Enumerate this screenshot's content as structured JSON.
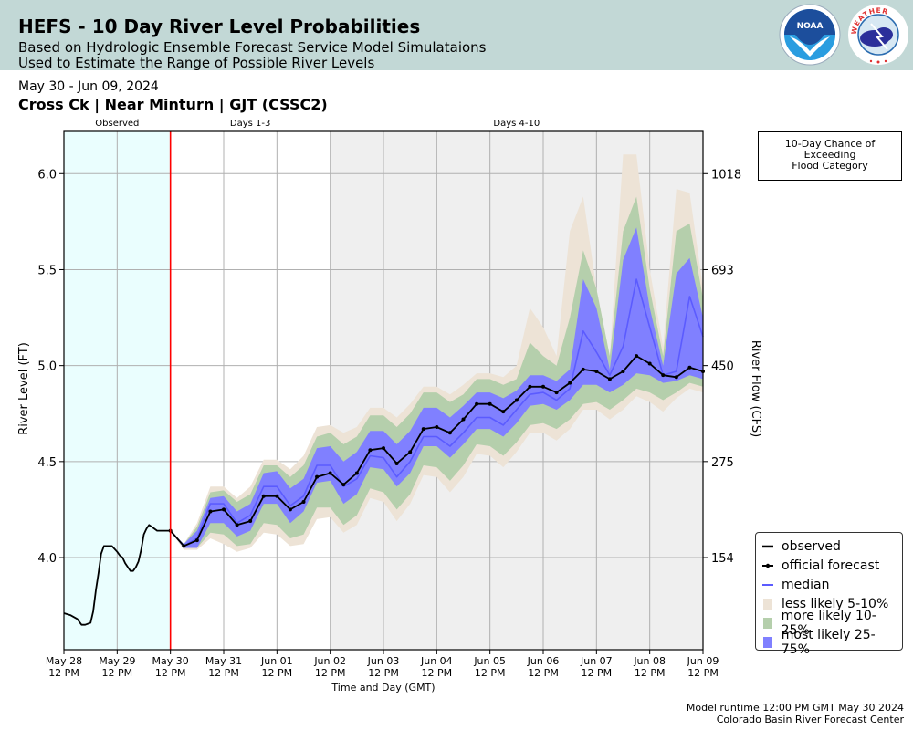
{
  "header": {
    "title": "HEFS - 10 Day River Level Probabilities",
    "subtitle_line1": "Based on Hydrologic Ensemble Forecast Service Model Simulataions",
    "subtitle_line2": "Used to Estimate the Range of Possible River Levels",
    "logos": [
      "noaa-logo",
      "national-weather-service-logo"
    ],
    "noaa_text": "NOAA",
    "nws_text": "NATIONAL WEATHER SERVICE"
  },
  "date_range": "May 30 - Jun 09, 2024",
  "station": "Cross Ck | Near Minturn | GJT (CSSC2)",
  "flood_box": {
    "line1": "10-Day Chance of",
    "line2": "Exceeding",
    "line3": "Flood Category"
  },
  "footer": {
    "runtime": "Model runtime 12:00 PM GMT May 30 2024",
    "center": "Colorado Basin River Forecast Center"
  },
  "colors": {
    "header_bg": "#c2d8d6",
    "observed_bg": "#eafefe",
    "days410_bg": "#efefef",
    "forecast_start_line": "#ff0000",
    "less_likely": "#ede3d6",
    "more_likely": "#b5cfac",
    "most_likely": "#8080ff",
    "median": "#5b5bff",
    "observed": "#000000",
    "official_forecast": "#000000"
  },
  "chart_data": {
    "type": "area",
    "title": "HEFS - 10 Day River Level Probabilities",
    "xlabel": "Time and Day (GMT)",
    "ylabel": "River Level (FT)",
    "y2label": "River Flow (CFS)",
    "ylim": [
      3.52,
      6.22
    ],
    "y_ticks": [
      4.0,
      4.5,
      5.0,
      5.5,
      6.0
    ],
    "y_tick_labels": [
      "4.0",
      "4.5",
      "5.0",
      "5.5",
      "6.0"
    ],
    "y2_ticks": [
      4.0,
      4.5,
      5.0,
      5.5,
      6.0
    ],
    "y2_tick_labels": [
      "154",
      "275",
      "450",
      "693",
      "1018"
    ],
    "x_unit": "days since May 28 12 PM GMT",
    "xlim": [
      0,
      12
    ],
    "x_ticks": [
      0,
      1,
      2,
      3,
      4,
      5,
      6,
      7,
      8,
      9,
      10,
      11,
      12
    ],
    "x_tick_labels": [
      [
        "May 28",
        "12 PM"
      ],
      [
        "May 29",
        "12 PM"
      ],
      [
        "May 30",
        "12 PM"
      ],
      [
        "May 31",
        "12 PM"
      ],
      [
        "Jun 01",
        "12 PM"
      ],
      [
        "Jun 02",
        "12 PM"
      ],
      [
        "Jun 03",
        "12 PM"
      ],
      [
        "Jun 04",
        "12 PM"
      ],
      [
        "Jun 05",
        "12 PM"
      ],
      [
        "Jun 06",
        "12 PM"
      ],
      [
        "Jun 07",
        "12 PM"
      ],
      [
        "Jun 08",
        "12 PM"
      ],
      [
        "Jun 09",
        "12 PM"
      ]
    ],
    "grid": true,
    "regions": [
      {
        "label": "Observed",
        "x_start": 0,
        "x_end": 2
      },
      {
        "label": "Days 1-3",
        "x_start": 2,
        "x_end": 5
      },
      {
        "label": "Days 4-10",
        "x_start": 5,
        "x_end": 12
      }
    ],
    "forecast_start_x": 2,
    "legend_position": "bottom-right",
    "legend": [
      {
        "label": "observed",
        "kind": "line",
        "color": "#000000"
      },
      {
        "label": "official forecast",
        "kind": "marker-line",
        "color": "#000000"
      },
      {
        "label": "median",
        "kind": "line",
        "color": "#5b5bff"
      },
      {
        "label": "less likely 5-10%",
        "kind": "patch",
        "color": "#ede3d6"
      },
      {
        "label": "more likely 10-25%",
        "kind": "patch",
        "color": "#b5cfac"
      },
      {
        "label": "most likely 25-75%",
        "kind": "patch",
        "color": "#8080ff"
      }
    ],
    "observed": {
      "x": [
        0,
        0.12,
        0.25,
        0.33,
        0.4,
        0.5,
        0.55,
        0.6,
        0.65,
        0.7,
        0.75,
        0.8,
        0.85,
        0.9,
        1.0,
        1.05,
        1.1,
        1.15,
        1.2,
        1.25,
        1.3,
        1.35,
        1.4,
        1.45,
        1.5,
        1.55,
        1.6,
        1.65,
        1.7,
        1.75,
        1.8,
        1.85,
        1.9,
        1.95,
        2.0
      ],
      "y": [
        3.71,
        3.7,
        3.68,
        3.65,
        3.65,
        3.66,
        3.72,
        3.83,
        3.92,
        4.02,
        4.06,
        4.06,
        4.06,
        4.06,
        4.03,
        4.01,
        4.0,
        3.97,
        3.95,
        3.93,
        3.93,
        3.95,
        3.98,
        4.04,
        4.12,
        4.15,
        4.17,
        4.16,
        4.15,
        4.14,
        4.14,
        4.14,
        4.14,
        4.14,
        4.14
      ]
    },
    "official_forecast": {
      "x": [
        2.0,
        2.25,
        2.5,
        2.75,
        3.0,
        3.25,
        3.5,
        3.75,
        4.0,
        4.25,
        4.5,
        4.75,
        5.0,
        5.25,
        5.5,
        5.75,
        6.0,
        6.25,
        6.5,
        6.75,
        7.0,
        7.25,
        7.5,
        7.75,
        8.0,
        8.25,
        8.5,
        8.75,
        9.0,
        9.25,
        9.5,
        9.75,
        10.0,
        10.25,
        10.5,
        10.75,
        11.0,
        11.25,
        11.5,
        11.75,
        12.0
      ],
      "y": [
        4.14,
        4.06,
        4.09,
        4.24,
        4.25,
        4.17,
        4.19,
        4.32,
        4.32,
        4.25,
        4.29,
        4.42,
        4.44,
        4.38,
        4.44,
        4.56,
        4.57,
        4.49,
        4.55,
        4.67,
        4.68,
        4.65,
        4.72,
        4.8,
        4.8,
        4.76,
        4.82,
        4.89,
        4.89,
        4.86,
        4.91,
        4.98,
        4.97,
        4.93,
        4.97,
        5.05,
        5.01,
        4.95,
        4.94,
        4.99,
        4.97
      ]
    },
    "median": {
      "x": [
        2.0,
        2.25,
        2.5,
        2.75,
        3.0,
        3.25,
        3.5,
        3.75,
        4.0,
        4.25,
        4.5,
        4.75,
        5.0,
        5.25,
        5.5,
        5.75,
        6.0,
        6.25,
        6.5,
        6.75,
        7.0,
        7.25,
        7.5,
        7.75,
        8.0,
        8.25,
        8.5,
        8.75,
        9.0,
        9.25,
        9.5,
        9.75,
        10.0,
        10.25,
        10.5,
        10.75,
        11.0,
        11.25,
        11.5,
        11.75,
        12.0
      ],
      "y": [
        4.14,
        4.06,
        4.1,
        4.28,
        4.28,
        4.18,
        4.22,
        4.37,
        4.37,
        4.27,
        4.32,
        4.48,
        4.48,
        4.37,
        4.41,
        4.53,
        4.52,
        4.42,
        4.5,
        4.63,
        4.63,
        4.58,
        4.65,
        4.73,
        4.73,
        4.69,
        4.77,
        4.85,
        4.86,
        4.82,
        4.88,
        5.18,
        5.07,
        4.95,
        5.1,
        5.45,
        5.2,
        4.95,
        4.97,
        5.36,
        5.15
      ]
    },
    "band_most_likely_25_75": {
      "x": [
        2.0,
        2.25,
        2.5,
        2.75,
        3.0,
        3.25,
        3.5,
        3.75,
        4.0,
        4.25,
        4.5,
        4.75,
        5.0,
        5.25,
        5.5,
        5.75,
        6.0,
        6.25,
        6.5,
        6.75,
        7.0,
        7.25,
        7.5,
        7.75,
        8.0,
        8.25,
        8.5,
        8.75,
        9.0,
        9.25,
        9.5,
        9.75,
        10.0,
        10.25,
        10.5,
        10.75,
        11.0,
        11.25,
        11.5,
        11.75,
        12.0
      ],
      "lower": [
        4.14,
        4.05,
        4.05,
        4.18,
        4.18,
        4.11,
        4.14,
        4.28,
        4.28,
        4.18,
        4.24,
        4.39,
        4.4,
        4.28,
        4.33,
        4.47,
        4.46,
        4.37,
        4.44,
        4.58,
        4.58,
        4.52,
        4.59,
        4.67,
        4.67,
        4.63,
        4.7,
        4.79,
        4.8,
        4.77,
        4.82,
        4.9,
        4.9,
        4.86,
        4.9,
        4.96,
        4.95,
        4.91,
        4.92,
        4.95,
        4.93
      ],
      "upper": [
        4.14,
        4.07,
        4.14,
        4.31,
        4.32,
        4.24,
        4.28,
        4.44,
        4.45,
        4.36,
        4.41,
        4.57,
        4.58,
        4.5,
        4.55,
        4.66,
        4.66,
        4.59,
        4.66,
        4.78,
        4.78,
        4.73,
        4.79,
        4.86,
        4.86,
        4.83,
        4.87,
        4.95,
        4.95,
        4.92,
        4.98,
        5.45,
        5.3,
        4.98,
        5.55,
        5.72,
        5.3,
        5.0,
        5.48,
        5.56,
        5.25
      ]
    },
    "band_more_likely_10_25": {
      "x": [
        2.0,
        2.25,
        2.5,
        2.75,
        3.0,
        3.25,
        3.5,
        3.75,
        4.0,
        4.25,
        4.5,
        4.75,
        5.0,
        5.25,
        5.5,
        5.75,
        6.0,
        6.25,
        6.5,
        6.75,
        7.0,
        7.25,
        7.5,
        7.75,
        8.0,
        8.25,
        8.5,
        8.75,
        9.0,
        9.25,
        9.5,
        9.75,
        10.0,
        10.25,
        10.5,
        10.75,
        11.0,
        11.25,
        11.5,
        11.75,
        12.0
      ],
      "lower": [
        4.14,
        4.05,
        4.05,
        4.13,
        4.12,
        4.06,
        4.07,
        4.18,
        4.17,
        4.1,
        4.12,
        4.26,
        4.26,
        4.17,
        4.22,
        4.36,
        4.34,
        4.25,
        4.33,
        4.48,
        4.47,
        4.4,
        4.48,
        4.59,
        4.58,
        4.53,
        4.6,
        4.69,
        4.7,
        4.67,
        4.72,
        4.8,
        4.81,
        4.77,
        4.82,
        4.88,
        4.86,
        4.82,
        4.86,
        4.91,
        4.89
      ],
      "upper": [
        4.14,
        4.07,
        4.16,
        4.34,
        4.35,
        4.29,
        4.33,
        4.48,
        4.48,
        4.42,
        4.48,
        4.63,
        4.65,
        4.59,
        4.63,
        4.74,
        4.74,
        4.68,
        4.75,
        4.86,
        4.86,
        4.81,
        4.85,
        4.93,
        4.93,
        4.9,
        4.93,
        5.12,
        5.05,
        5.0,
        5.25,
        5.6,
        5.4,
        5.05,
        5.7,
        5.88,
        5.4,
        5.05,
        5.7,
        5.74,
        5.35
      ]
    },
    "band_less_likely_5_10": {
      "x": [
        2.0,
        2.25,
        2.5,
        2.75,
        3.0,
        3.25,
        3.5,
        3.75,
        4.0,
        4.25,
        4.5,
        4.75,
        5.0,
        5.25,
        5.5,
        5.75,
        6.0,
        6.25,
        6.5,
        6.75,
        7.0,
        7.25,
        7.5,
        7.75,
        8.0,
        8.25,
        8.5,
        8.75,
        9.0,
        9.25,
        9.5,
        9.75,
        10.0,
        10.25,
        10.5,
        10.75,
        11.0,
        11.25,
        11.5,
        11.75,
        12.0
      ],
      "lower": [
        4.14,
        4.04,
        4.04,
        4.1,
        4.07,
        4.03,
        4.05,
        4.13,
        4.12,
        4.06,
        4.07,
        4.2,
        4.21,
        4.13,
        4.17,
        4.31,
        4.29,
        4.19,
        4.28,
        4.43,
        4.42,
        4.34,
        4.42,
        4.54,
        4.53,
        4.47,
        4.55,
        4.65,
        4.65,
        4.61,
        4.67,
        4.77,
        4.77,
        4.72,
        4.77,
        4.84,
        4.81,
        4.76,
        4.83,
        4.88,
        4.86
      ],
      "upper": [
        4.14,
        4.07,
        4.18,
        4.37,
        4.37,
        4.31,
        4.37,
        4.51,
        4.51,
        4.46,
        4.53,
        4.68,
        4.69,
        4.65,
        4.68,
        4.78,
        4.78,
        4.73,
        4.8,
        4.89,
        4.89,
        4.85,
        4.9,
        4.96,
        4.96,
        4.94,
        5.0,
        5.3,
        5.2,
        5.05,
        5.7,
        5.88,
        5.4,
        5.05,
        6.1,
        6.1,
        5.5,
        5.1,
        5.92,
        5.9,
        5.4
      ]
    }
  }
}
